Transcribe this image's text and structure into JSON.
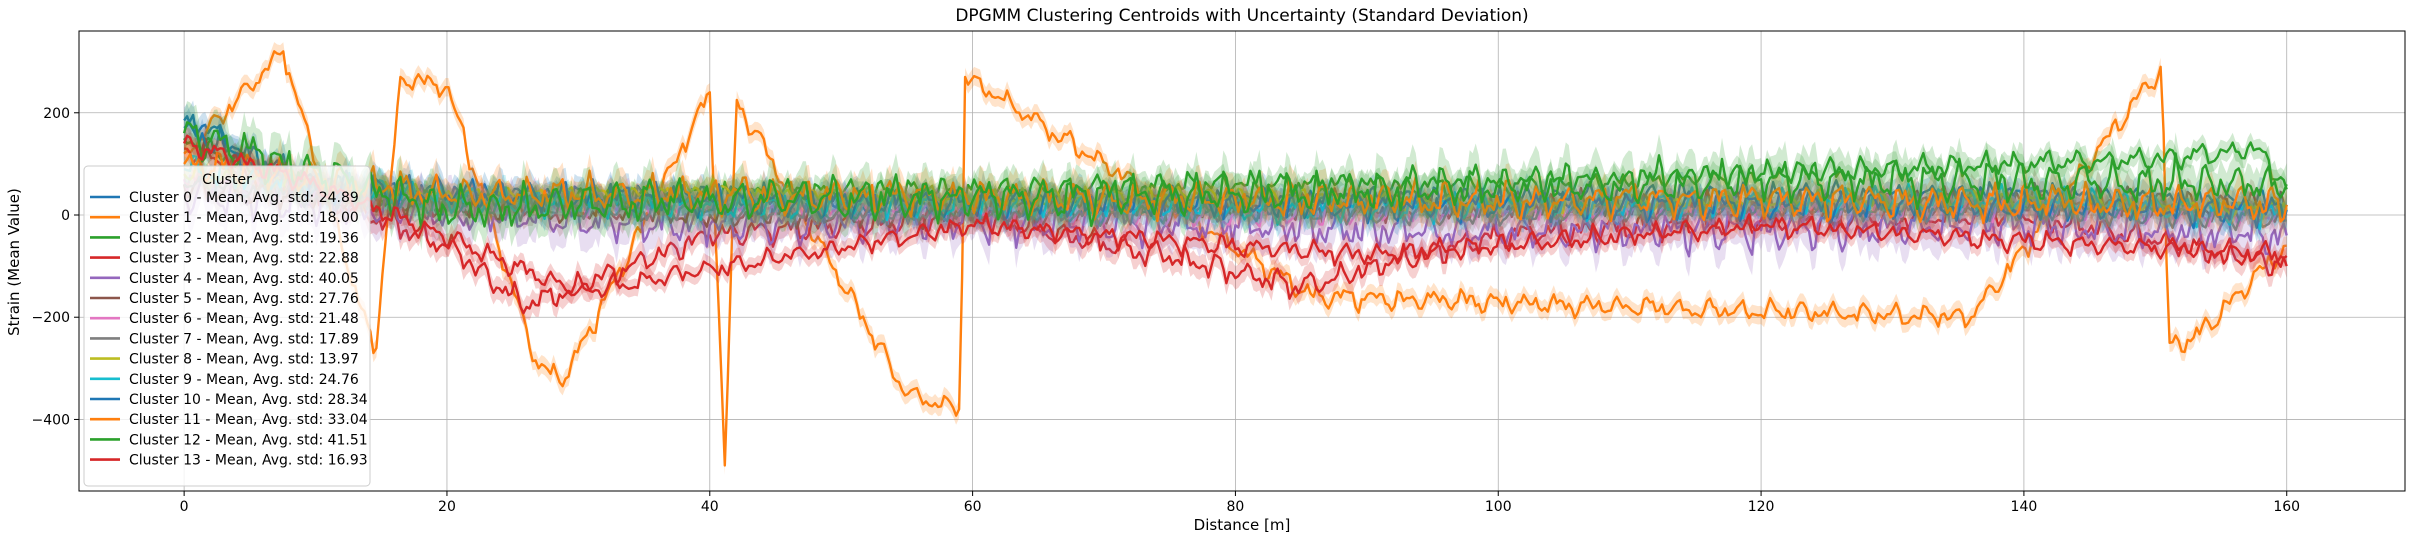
{
  "chart_data": {
    "type": "line",
    "title": "DPGMM Clustering Centroids with Uncertainty (Standard Deviation)",
    "xlabel": "Distance [m]",
    "ylabel": "Strain (Mean Value)",
    "xlim": [
      -8,
      169
    ],
    "ylim": [
      -540,
      360
    ],
    "xticks": [
      0,
      20,
      40,
      60,
      80,
      100,
      120,
      140,
      160
    ],
    "yticks": [
      -400,
      -200,
      0,
      200
    ],
    "grid": true,
    "legend": {
      "title": "Cluster",
      "placement": "left",
      "bands": "shaded ±1 std"
    },
    "x_range": [
      0,
      160
    ],
    "series": [
      {
        "name": "Cluster 0 - Mean, Avg. std: 24.89",
        "color": "#1f77b4",
        "std": 24.89,
        "points": [
          [
            0,
            185
          ],
          [
            2,
            170
          ],
          [
            5,
            110
          ],
          [
            10,
            60
          ],
          [
            20,
            35
          ],
          [
            40,
            30
          ],
          [
            60,
            20
          ],
          [
            80,
            25
          ],
          [
            100,
            30
          ],
          [
            120,
            35
          ],
          [
            140,
            40
          ],
          [
            160,
            20
          ]
        ]
      },
      {
        "name": "Cluster 1 - Mean, Avg. std: 18.00",
        "color": "#ff7f0e",
        "std": 18.0,
        "points": [
          [
            0,
            120
          ],
          [
            7.5,
            320
          ],
          [
            14.5,
            -270
          ],
          [
            16.5,
            270
          ],
          [
            20,
            250
          ],
          [
            27,
            -300
          ],
          [
            29,
            -320
          ],
          [
            40,
            240
          ],
          [
            41.2,
            -490
          ],
          [
            42,
            225
          ],
          [
            55,
            -350
          ],
          [
            59,
            -380
          ],
          [
            59.5,
            270
          ],
          [
            86,
            -160
          ],
          [
            136,
            -200
          ],
          [
            150.5,
            290
          ],
          [
            151,
            -250
          ],
          [
            153,
            -240
          ],
          [
            160,
            -60
          ]
        ]
      },
      {
        "name": "Cluster 2 - Mean, Avg. std: 19.36",
        "color": "#2ca02c",
        "std": 19.36,
        "points": [
          [
            0,
            150
          ],
          [
            10,
            40
          ],
          [
            20,
            20
          ],
          [
            40,
            40
          ],
          [
            60,
            50
          ],
          [
            80,
            60
          ],
          [
            100,
            60
          ],
          [
            120,
            80
          ],
          [
            140,
            100
          ],
          [
            150,
            110
          ],
          [
            158,
            130
          ],
          [
            160,
            50
          ]
        ]
      },
      {
        "name": "Cluster 3 - Mean, Avg. std: 22.88",
        "color": "#d62728",
        "std": 22.88,
        "points": [
          [
            0,
            130
          ],
          [
            10,
            40
          ],
          [
            20,
            -60
          ],
          [
            26,
            -180
          ],
          [
            40,
            -40
          ],
          [
            60,
            0
          ],
          [
            85,
            -140
          ],
          [
            100,
            -40
          ],
          [
            120,
            -10
          ],
          [
            140,
            0
          ],
          [
            160,
            -100
          ]
        ]
      },
      {
        "name": "Cluster 4 - Mean, Avg. std: 40.05",
        "color": "#9467bd",
        "std": 40.05,
        "points": [
          [
            0,
            40
          ],
          [
            20,
            0
          ],
          [
            40,
            -20
          ],
          [
            60,
            -10
          ],
          [
            80,
            -20
          ],
          [
            100,
            -30
          ],
          [
            120,
            -30
          ],
          [
            140,
            -20
          ],
          [
            160,
            -40
          ]
        ]
      },
      {
        "name": "Cluster 5 - Mean, Avg. std: 27.76",
        "color": "#8c564b",
        "std": 27.76,
        "points": [
          [
            0,
            60
          ],
          [
            20,
            20
          ],
          [
            40,
            0
          ],
          [
            60,
            10
          ],
          [
            80,
            20
          ],
          [
            100,
            10
          ],
          [
            120,
            20
          ],
          [
            140,
            30
          ],
          [
            160,
            10
          ]
        ]
      },
      {
        "name": "Cluster 6 - Mean, Avg. std: 21.48",
        "color": "#e377c2",
        "std": 21.48,
        "points": [
          [
            0,
            70
          ],
          [
            20,
            30
          ],
          [
            40,
            20
          ],
          [
            60,
            10
          ],
          [
            80,
            0
          ],
          [
            100,
            10
          ],
          [
            120,
            10
          ],
          [
            140,
            20
          ],
          [
            160,
            0
          ]
        ]
      },
      {
        "name": "Cluster 7 - Mean, Avg. std: 17.89",
        "color": "#7f7f7f",
        "std": 17.89,
        "points": [
          [
            0,
            60
          ],
          [
            20,
            20
          ],
          [
            40,
            10
          ],
          [
            60,
            0
          ],
          [
            80,
            10
          ],
          [
            100,
            0
          ],
          [
            120,
            10
          ],
          [
            140,
            10
          ],
          [
            160,
            -10
          ]
        ]
      },
      {
        "name": "Cluster 8 - Mean, Avg. std: 13.97",
        "color": "#bcbd22",
        "std": 13.97,
        "points": [
          [
            0,
            80
          ],
          [
            20,
            40
          ],
          [
            40,
            50
          ],
          [
            60,
            30
          ],
          [
            80,
            40
          ],
          [
            100,
            20
          ],
          [
            120,
            30
          ],
          [
            140,
            30
          ],
          [
            160,
            10
          ]
        ]
      },
      {
        "name": "Cluster 9 - Mean, Avg. std: 24.76",
        "color": "#17becf",
        "std": 24.76,
        "points": [
          [
            0,
            90
          ],
          [
            20,
            30
          ],
          [
            40,
            20
          ],
          [
            60,
            20
          ],
          [
            80,
            10
          ],
          [
            100,
            20
          ],
          [
            120,
            20
          ],
          [
            140,
            30
          ],
          [
            160,
            0
          ]
        ]
      },
      {
        "name": "Cluster 10 - Mean, Avg. std: 28.34",
        "color": "#1f77b4",
        "std": 28.34,
        "points": [
          [
            0,
            170
          ],
          [
            10,
            50
          ],
          [
            40,
            30
          ],
          [
            80,
            20
          ],
          [
            120,
            20
          ],
          [
            160,
            10
          ]
        ]
      },
      {
        "name": "Cluster 11 - Mean, Avg. std: 33.04",
        "color": "#ff7f0e",
        "std": 33.04,
        "points": [
          [
            0,
            100
          ],
          [
            20,
            40
          ],
          [
            40,
            40
          ],
          [
            80,
            30
          ],
          [
            120,
            30
          ],
          [
            160,
            20
          ]
        ]
      },
      {
        "name": "Cluster 12 - Mean, Avg. std: 41.51",
        "color": "#2ca02c",
        "std": 41.51,
        "points": [
          [
            0,
            160
          ],
          [
            20,
            10
          ],
          [
            40,
            30
          ],
          [
            80,
            40
          ],
          [
            120,
            70
          ],
          [
            160,
            60
          ]
        ]
      },
      {
        "name": "Cluster 13 - Mean, Avg. std: 16.93",
        "color": "#d62728",
        "std": 16.93,
        "points": [
          [
            0,
            140
          ],
          [
            10,
            60
          ],
          [
            30,
            -150
          ],
          [
            60,
            -20
          ],
          [
            90,
            -80
          ],
          [
            120,
            -20
          ],
          [
            160,
            -80
          ]
        ]
      }
    ]
  }
}
